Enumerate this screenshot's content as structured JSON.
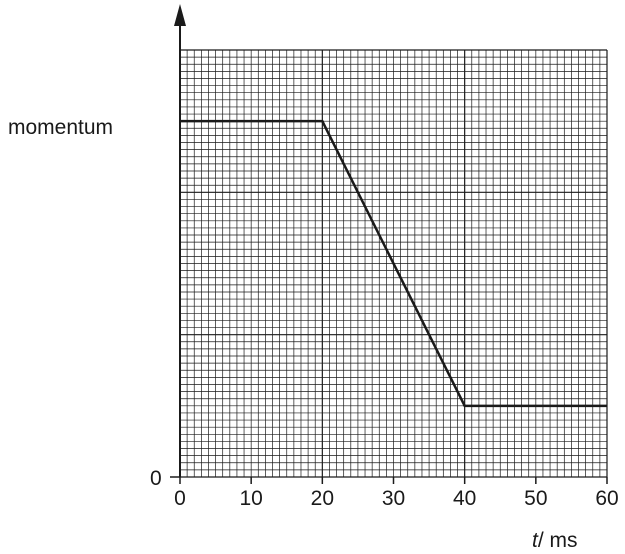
{
  "chart_data": {
    "type": "line",
    "title": "",
    "xlabel": {
      "variable": "t",
      "unit": "/ ms"
    },
    "ylabel": "momentum",
    "xlim": [
      0,
      60
    ],
    "x_ticks": [
      0,
      10,
      20,
      30,
      40,
      50,
      60
    ],
    "y_ticks": [
      "0"
    ],
    "ylim": [
      0,
      3
    ],
    "grid": true,
    "series": [
      {
        "x": [
          0,
          20,
          40,
          60
        ],
        "y": [
          2.5,
          2.5,
          0.5,
          0.5
        ]
      }
    ]
  }
}
